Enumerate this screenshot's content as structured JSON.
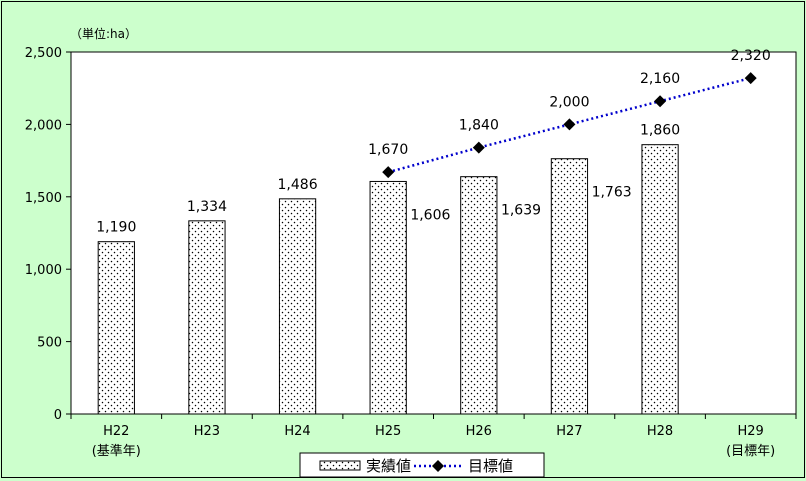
{
  "chart_data": {
    "type": "bar",
    "unit_label": "（単位:ha）",
    "categories": [
      {
        "line1": "H22",
        "line2": "(基準年)"
      },
      {
        "line1": "H23",
        "line2": ""
      },
      {
        "line1": "H24",
        "line2": ""
      },
      {
        "line1": "H25",
        "line2": ""
      },
      {
        "line1": "H26",
        "line2": ""
      },
      {
        "line1": "H27",
        "line2": ""
      },
      {
        "line1": "H28",
        "line2": ""
      },
      {
        "line1": "H29",
        "line2": "(目標年)"
      }
    ],
    "ylim": [
      0,
      2500
    ],
    "yticks": [
      0,
      500,
      1000,
      1500,
      2000,
      2500
    ],
    "ytick_labels": [
      "0",
      "500",
      "1,000",
      "1,500",
      "2,000",
      "2,500"
    ],
    "grid": false,
    "legend_position": "bottom-center",
    "series": [
      {
        "name": "実績値",
        "kind": "bar",
        "pattern": "dotted",
        "values": [
          1190,
          1334,
          1486,
          1606,
          1639,
          1763,
          1860,
          null
        ],
        "labels": [
          "1,190",
          "1,334",
          "1,486",
          "1,606",
          "1,639",
          "1,763",
          "1,860",
          ""
        ]
      },
      {
        "name": "目標値",
        "kind": "line",
        "line_style": "dotted",
        "color": "#0000cc",
        "marker": "diamond",
        "values": [
          null,
          null,
          null,
          1670,
          1840,
          2000,
          2160,
          2320
        ],
        "labels": [
          "",
          "",
          "",
          "1,670",
          "1,840",
          "2,000",
          "2,160",
          "2,320"
        ]
      }
    ]
  }
}
